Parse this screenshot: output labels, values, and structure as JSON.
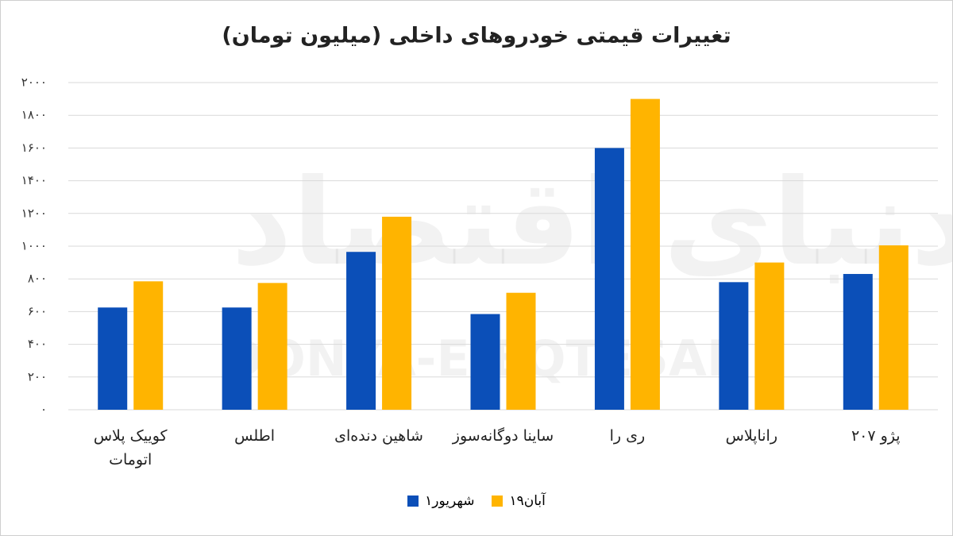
{
  "chart_data": {
    "type": "bar",
    "title": "تغییرات قیمتی خودروهای داخلی (میلیون تومان)",
    "watermark": {
      "text": "دنیای اقتصاد",
      "latin": "DONYA-E-EQTESAD"
    },
    "categories": [
      "کوییک پلاس اتومات",
      "اطلس",
      "شاهین دنده‌ای",
      "ساینا دوگانه‌سوز",
      "ری را",
      "راناپلاس",
      "پژو ۲۰۷"
    ],
    "series": [
      {
        "name": "۱شهریور",
        "color": "#0b4fb8",
        "values": [
          625,
          625,
          965,
          585,
          1600,
          780,
          830
        ]
      },
      {
        "name": "۱۹آبان",
        "color": "#ffb400",
        "values": [
          785,
          775,
          1180,
          715,
          1900,
          900,
          1005
        ]
      }
    ],
    "ylim": [
      0,
      2000
    ],
    "yticks": [
      {
        "value": 0,
        "label": "۰"
      },
      {
        "value": 200,
        "label": "۲۰۰"
      },
      {
        "value": 400,
        "label": "۴۰۰"
      },
      {
        "value": 600,
        "label": "۶۰۰"
      },
      {
        "value": 800,
        "label": "۸۰۰"
      },
      {
        "value": 1000,
        "label": "۱۰۰۰"
      },
      {
        "value": 1200,
        "label": "۱۲۰۰"
      },
      {
        "value": 1400,
        "label": "۱۴۰۰"
      },
      {
        "value": 1600,
        "label": "۱۶۰۰"
      },
      {
        "value": 1800,
        "label": "۱۸۰۰"
      },
      {
        "value": 2000,
        "label": "۲۰۰۰"
      }
    ],
    "grid": true
  }
}
